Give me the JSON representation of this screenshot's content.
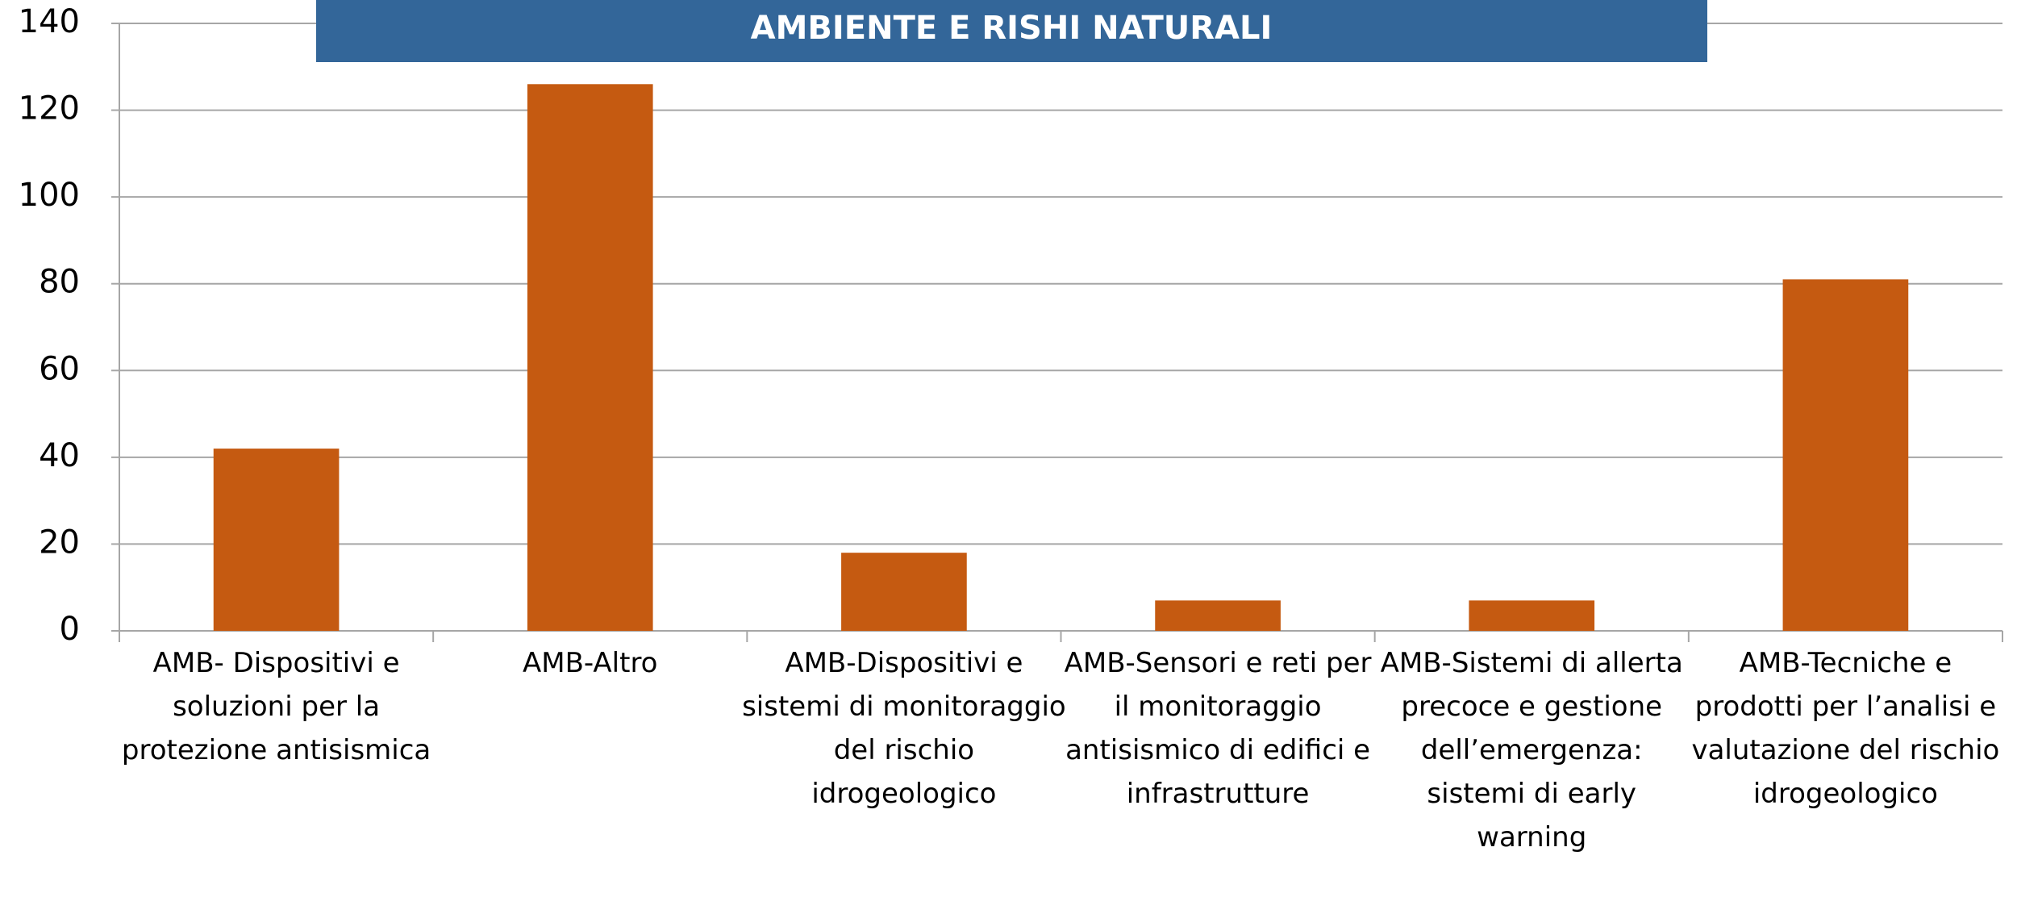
{
  "chart_data": {
    "type": "bar",
    "title": "AMBIENTE E RISHI NATURALI",
    "categories": [
      "AMB- Dispositivi e soluzioni per la protezione antisismica",
      "AMB-Altro",
      "AMB-Dispositivi e sistemi di monitoraggio del rischio idrogeologico",
      "AMB-Sensori e reti per il monitoraggio antisismico di edifici e infrastrutture",
      "AMB-Sistemi di allerta precoce e gestione dell’emergenza: sistemi di early warning",
      "AMB-Tecniche e prodotti per l’analisi e valutazione del rischio idrogeologico"
    ],
    "values": [
      42,
      126,
      18,
      7,
      7,
      81
    ],
    "color": "#c55a11",
    "ylim": [
      0,
      140
    ],
    "yticks": [
      0,
      20,
      40,
      60,
      80,
      100,
      120,
      140
    ],
    "grid": true
  }
}
